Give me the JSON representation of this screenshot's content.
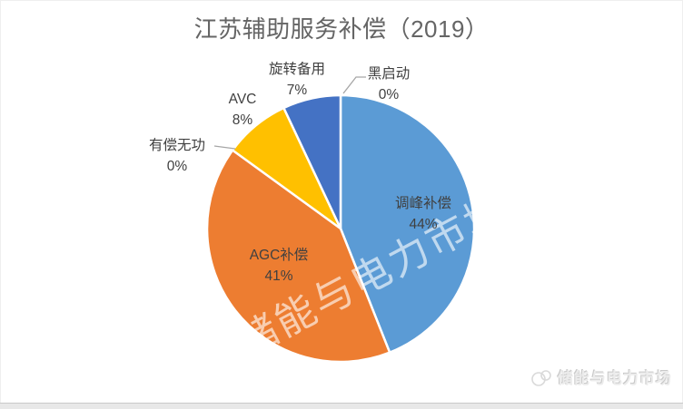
{
  "chart_data": {
    "type": "pie",
    "title": "江苏辅助服务补偿（2019）",
    "direction": "clockwise",
    "start_angle_deg": 0,
    "legend_position": "none",
    "label_format": "category name + percentage",
    "label_color": "#404040",
    "slices": [
      {
        "label": "调峰补偿",
        "value": 44,
        "pct_label": "44%",
        "color": "#5B9BD5",
        "label_placement": "inside"
      },
      {
        "label": "AGC补偿",
        "value": 41,
        "pct_label": "41%",
        "color": "#ED7D31",
        "label_placement": "inside"
      },
      {
        "label": "有偿无功",
        "value": 0,
        "pct_label": "0%",
        "color": null,
        "label_placement": "outside-with-leader"
      },
      {
        "label": "AVC",
        "value": 8,
        "pct_label": "8%",
        "color": "#FFC000",
        "label_placement": "outside"
      },
      {
        "label": "旋转备用",
        "value": 7,
        "pct_label": "7%",
        "color": "#4472C4",
        "label_placement": "outside"
      },
      {
        "label": "黑启动",
        "value": 0,
        "pct_label": "0%",
        "color": null,
        "label_placement": "outside-with-leader"
      }
    ]
  },
  "watermark": {
    "text": "储能与电力市场"
  },
  "footer": {
    "brand": "储能与电力市场"
  }
}
